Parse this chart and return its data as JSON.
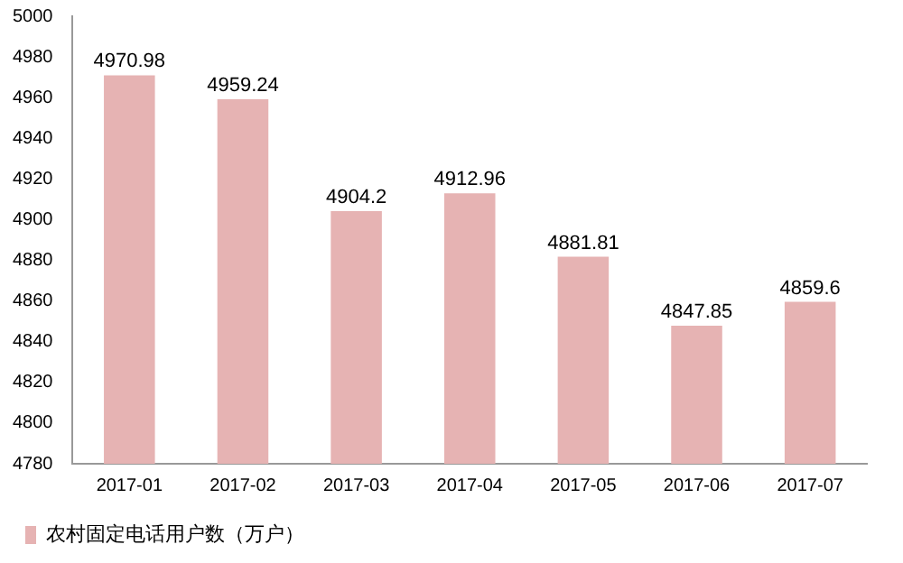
{
  "chart_data": {
    "type": "bar",
    "categories": [
      "2017-01",
      "2017-02",
      "2017-03",
      "2017-04",
      "2017-05",
      "2017-06",
      "2017-07"
    ],
    "series": [
      {
        "name": "农村固定电话用户数（万户）",
        "color": "#e6b3b3",
        "values": [
          4970.98,
          4959.24,
          4904.2,
          4912.96,
          4881.81,
          4847.85,
          4859.6
        ]
      }
    ],
    "ylim": [
      4780,
      5000
    ],
    "yticks": [
      4780,
      4800,
      4820,
      4840,
      4860,
      4880,
      4900,
      4920,
      4940,
      4960,
      4980,
      5000
    ],
    "grid": false,
    "legend": "bottom",
    "data_labels": true
  }
}
